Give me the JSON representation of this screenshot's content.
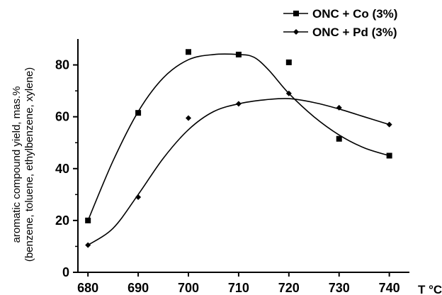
{
  "chart_data": {
    "type": "scatter",
    "title": "",
    "ylabel_line1": "aromatic compound yield, mas.%",
    "ylabel_line2": "(benzene, toluene, ethylbenzene, xylene)",
    "xlabel": "T °C",
    "xlim": [
      678,
      744
    ],
    "ylim": [
      0,
      90
    ],
    "x_ticks": [
      680,
      690,
      700,
      710,
      720,
      730,
      740
    ],
    "y_ticks": [
      0,
      20,
      40,
      60,
      80
    ],
    "grid": false,
    "legend_position": "top-right",
    "series": [
      {
        "name": "ONC + Co (3%)",
        "marker": "square",
        "color": "#000000",
        "x": [
          680,
          690,
          700,
          710,
          720,
          730,
          740
        ],
        "y": [
          20,
          61.5,
          85,
          84,
          81,
          51.5,
          45
        ],
        "fit_curve": [
          [
            680,
            20
          ],
          [
            685,
            43
          ],
          [
            690,
            62
          ],
          [
            695,
            75
          ],
          [
            700,
            82
          ],
          [
            705,
            84
          ],
          [
            710,
            84
          ],
          [
            713,
            83
          ],
          [
            716,
            78
          ],
          [
            720,
            69
          ],
          [
            725,
            60
          ],
          [
            730,
            53
          ],
          [
            735,
            48
          ],
          [
            740,
            45
          ]
        ]
      },
      {
        "name": "ONC + Pd (3%)",
        "marker": "diamond",
        "color": "#000000",
        "x": [
          680,
          690,
          700,
          710,
          720,
          730,
          740
        ],
        "y": [
          10.5,
          29,
          59.5,
          65,
          69,
          63.5,
          57
        ],
        "fit_curve": [
          [
            680,
            10.5
          ],
          [
            685,
            17
          ],
          [
            690,
            30
          ],
          [
            695,
            44
          ],
          [
            700,
            55
          ],
          [
            705,
            62
          ],
          [
            710,
            65
          ],
          [
            715,
            66.5
          ],
          [
            720,
            67
          ],
          [
            725,
            65.5
          ],
          [
            730,
            63
          ],
          [
            735,
            60
          ],
          [
            740,
            57
          ]
        ]
      }
    ]
  }
}
